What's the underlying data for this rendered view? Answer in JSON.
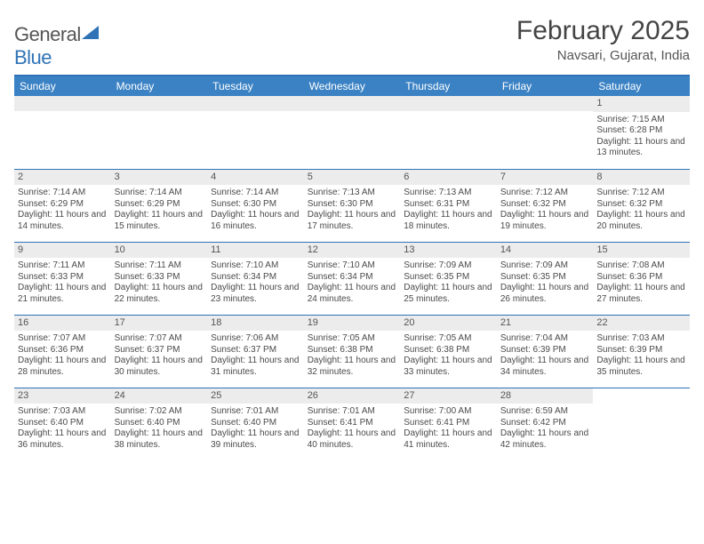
{
  "logo": {
    "text1": "General",
    "text2": "Blue"
  },
  "title": "February 2025",
  "location": "Navsari, Gujarat, India",
  "day_headers": [
    "Sunday",
    "Monday",
    "Tuesday",
    "Wednesday",
    "Thursday",
    "Friday",
    "Saturday"
  ],
  "colors": {
    "header_bg": "#3b82c4",
    "border": "#2f73b6",
    "daynum_bg": "#ececec",
    "text": "#4a4a4a"
  },
  "weeks": [
    [
      null,
      null,
      null,
      null,
      null,
      null,
      {
        "n": "1",
        "sr": "Sunrise: 7:15 AM",
        "ss": "Sunset: 6:28 PM",
        "dl": "Daylight: 11 hours and 13 minutes."
      }
    ],
    [
      {
        "n": "2",
        "sr": "Sunrise: 7:14 AM",
        "ss": "Sunset: 6:29 PM",
        "dl": "Daylight: 11 hours and 14 minutes."
      },
      {
        "n": "3",
        "sr": "Sunrise: 7:14 AM",
        "ss": "Sunset: 6:29 PM",
        "dl": "Daylight: 11 hours and 15 minutes."
      },
      {
        "n": "4",
        "sr": "Sunrise: 7:14 AM",
        "ss": "Sunset: 6:30 PM",
        "dl": "Daylight: 11 hours and 16 minutes."
      },
      {
        "n": "5",
        "sr": "Sunrise: 7:13 AM",
        "ss": "Sunset: 6:30 PM",
        "dl": "Daylight: 11 hours and 17 minutes."
      },
      {
        "n": "6",
        "sr": "Sunrise: 7:13 AM",
        "ss": "Sunset: 6:31 PM",
        "dl": "Daylight: 11 hours and 18 minutes."
      },
      {
        "n": "7",
        "sr": "Sunrise: 7:12 AM",
        "ss": "Sunset: 6:32 PM",
        "dl": "Daylight: 11 hours and 19 minutes."
      },
      {
        "n": "8",
        "sr": "Sunrise: 7:12 AM",
        "ss": "Sunset: 6:32 PM",
        "dl": "Daylight: 11 hours and 20 minutes."
      }
    ],
    [
      {
        "n": "9",
        "sr": "Sunrise: 7:11 AM",
        "ss": "Sunset: 6:33 PM",
        "dl": "Daylight: 11 hours and 21 minutes."
      },
      {
        "n": "10",
        "sr": "Sunrise: 7:11 AM",
        "ss": "Sunset: 6:33 PM",
        "dl": "Daylight: 11 hours and 22 minutes."
      },
      {
        "n": "11",
        "sr": "Sunrise: 7:10 AM",
        "ss": "Sunset: 6:34 PM",
        "dl": "Daylight: 11 hours and 23 minutes."
      },
      {
        "n": "12",
        "sr": "Sunrise: 7:10 AM",
        "ss": "Sunset: 6:34 PM",
        "dl": "Daylight: 11 hours and 24 minutes."
      },
      {
        "n": "13",
        "sr": "Sunrise: 7:09 AM",
        "ss": "Sunset: 6:35 PM",
        "dl": "Daylight: 11 hours and 25 minutes."
      },
      {
        "n": "14",
        "sr": "Sunrise: 7:09 AM",
        "ss": "Sunset: 6:35 PM",
        "dl": "Daylight: 11 hours and 26 minutes."
      },
      {
        "n": "15",
        "sr": "Sunrise: 7:08 AM",
        "ss": "Sunset: 6:36 PM",
        "dl": "Daylight: 11 hours and 27 minutes."
      }
    ],
    [
      {
        "n": "16",
        "sr": "Sunrise: 7:07 AM",
        "ss": "Sunset: 6:36 PM",
        "dl": "Daylight: 11 hours and 28 minutes."
      },
      {
        "n": "17",
        "sr": "Sunrise: 7:07 AM",
        "ss": "Sunset: 6:37 PM",
        "dl": "Daylight: 11 hours and 30 minutes."
      },
      {
        "n": "18",
        "sr": "Sunrise: 7:06 AM",
        "ss": "Sunset: 6:37 PM",
        "dl": "Daylight: 11 hours and 31 minutes."
      },
      {
        "n": "19",
        "sr": "Sunrise: 7:05 AM",
        "ss": "Sunset: 6:38 PM",
        "dl": "Daylight: 11 hours and 32 minutes."
      },
      {
        "n": "20",
        "sr": "Sunrise: 7:05 AM",
        "ss": "Sunset: 6:38 PM",
        "dl": "Daylight: 11 hours and 33 minutes."
      },
      {
        "n": "21",
        "sr": "Sunrise: 7:04 AM",
        "ss": "Sunset: 6:39 PM",
        "dl": "Daylight: 11 hours and 34 minutes."
      },
      {
        "n": "22",
        "sr": "Sunrise: 7:03 AM",
        "ss": "Sunset: 6:39 PM",
        "dl": "Daylight: 11 hours and 35 minutes."
      }
    ],
    [
      {
        "n": "23",
        "sr": "Sunrise: 7:03 AM",
        "ss": "Sunset: 6:40 PM",
        "dl": "Daylight: 11 hours and 36 minutes."
      },
      {
        "n": "24",
        "sr": "Sunrise: 7:02 AM",
        "ss": "Sunset: 6:40 PM",
        "dl": "Daylight: 11 hours and 38 minutes."
      },
      {
        "n": "25",
        "sr": "Sunrise: 7:01 AM",
        "ss": "Sunset: 6:40 PM",
        "dl": "Daylight: 11 hours and 39 minutes."
      },
      {
        "n": "26",
        "sr": "Sunrise: 7:01 AM",
        "ss": "Sunset: 6:41 PM",
        "dl": "Daylight: 11 hours and 40 minutes."
      },
      {
        "n": "27",
        "sr": "Sunrise: 7:00 AM",
        "ss": "Sunset: 6:41 PM",
        "dl": "Daylight: 11 hours and 41 minutes."
      },
      {
        "n": "28",
        "sr": "Sunrise: 6:59 AM",
        "ss": "Sunset: 6:42 PM",
        "dl": "Daylight: 11 hours and 42 minutes."
      },
      null
    ]
  ]
}
